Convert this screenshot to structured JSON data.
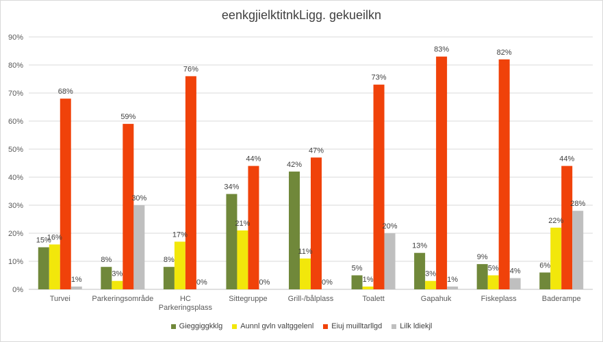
{
  "chart_data": {
    "type": "bar",
    "title": "eenkgjielktitnkLigg. gekueilkn",
    "categories": [
      "Turvei",
      "Parkeringsområde",
      "HC\nParkeringsplass",
      "Sittegruppe",
      "Grill-/bålplass",
      "Toalett",
      "Gapahuk",
      "Fiskeplass",
      "Baderampe"
    ],
    "series": [
      {
        "name": "Gieggiggkklg",
        "color": "#70883a",
        "values": [
          15,
          8,
          8,
          34,
          42,
          5,
          13,
          9,
          6
        ]
      },
      {
        "name": "Aunnl gvln valtggelenl",
        "color": "#f2e70b",
        "values": [
          16,
          3,
          17,
          21,
          11,
          1,
          3,
          5,
          22
        ]
      },
      {
        "name": "Eiuj muilltarllgd",
        "color": "#f0420a",
        "values": [
          68,
          59,
          76,
          44,
          47,
          73,
          83,
          82,
          44
        ]
      },
      {
        "name": "Lilk ldiekjl",
        "color": "#bfbfbf",
        "values": [
          1,
          30,
          0,
          0,
          0,
          20,
          1,
          4,
          28
        ]
      }
    ],
    "ylim": [
      0,
      90
    ],
    "yticks": [
      "0%",
      "10%",
      "20%",
      "30%",
      "40%",
      "50%",
      "60%",
      "70%",
      "80%",
      "90%"
    ],
    "grid": true,
    "legend_position": "bottom"
  }
}
